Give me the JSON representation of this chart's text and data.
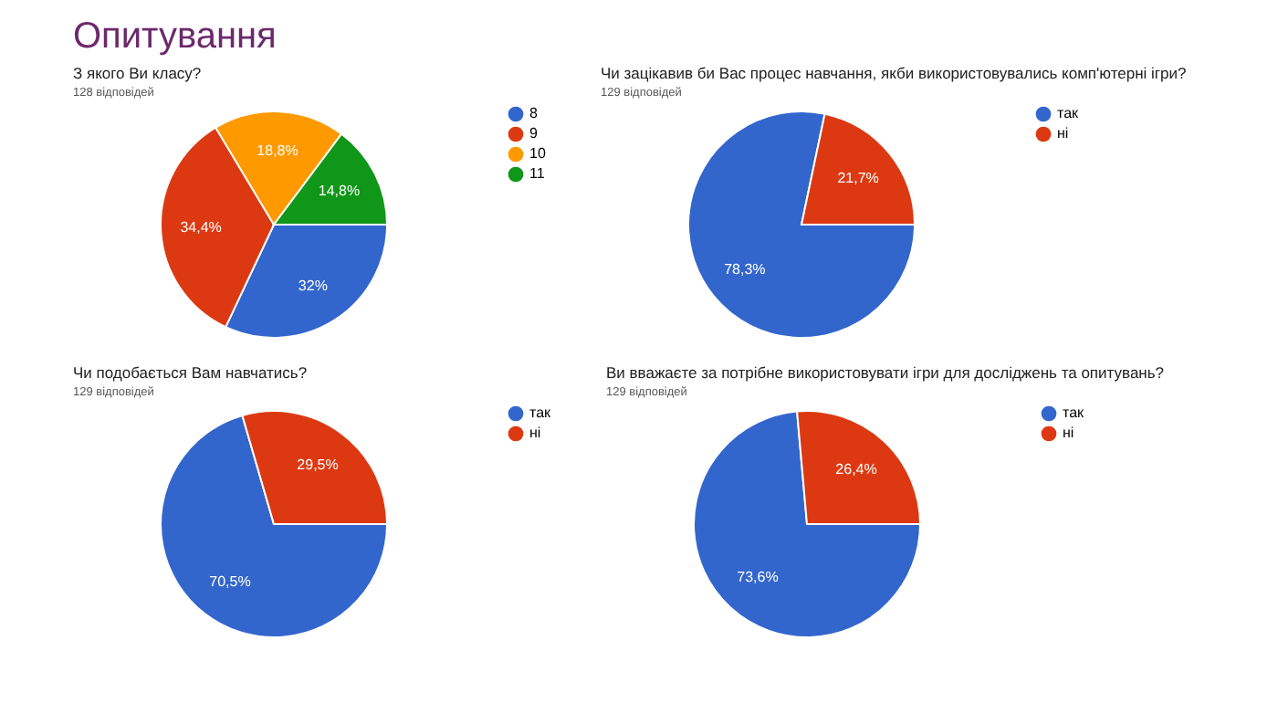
{
  "chart_data": [
    {
      "type": "pie",
      "title": "З якого Ви класу?",
      "subtitle": "128 відповідей",
      "annotations": [
        "Опитування"
      ],
      "categories": [
        "8",
        "9",
        "10",
        "11"
      ],
      "values": [
        32,
        34.4,
        18.8,
        14.8
      ],
      "colors": [
        "#3366cc",
        "#dc3912",
        "#ff9900",
        "#109618"
      ],
      "value_labels": [
        "32%",
        "34,4%",
        "18,8%",
        "14,8%"
      ],
      "legend": "right"
    },
    {
      "type": "pie",
      "title": "Чи зацікавив би Вас процес навчання, якби використовувались комп'ютерні ігри?",
      "subtitle": "129 відповідей",
      "categories": [
        "так",
        "ні"
      ],
      "values": [
        78.3,
        21.7
      ],
      "colors": [
        "#3366cc",
        "#dc3912"
      ],
      "value_labels": [
        "78,3%",
        "21,7%"
      ],
      "legend": "right"
    },
    {
      "type": "pie",
      "title": "Чи подобається Вам навчатись?",
      "subtitle": "129 відповідей",
      "categories": [
        "так",
        "ні"
      ],
      "values": [
        70.5,
        29.5
      ],
      "colors": [
        "#3366cc",
        "#dc3912"
      ],
      "value_labels": [
        "70,5%",
        "29,5%"
      ],
      "legend": "right"
    },
    {
      "type": "pie",
      "title": "Ви вважаєте за потрібне використовувати ігри для досліджень та опитувань?",
      "subtitle": "129 відповідей",
      "categories": [
        "так",
        "ні"
      ],
      "values": [
        73.6,
        26.4
      ],
      "colors": [
        "#3366cc",
        "#dc3912"
      ],
      "value_labels": [
        "73,6%",
        "26,4%"
      ],
      "legend": "right"
    }
  ]
}
